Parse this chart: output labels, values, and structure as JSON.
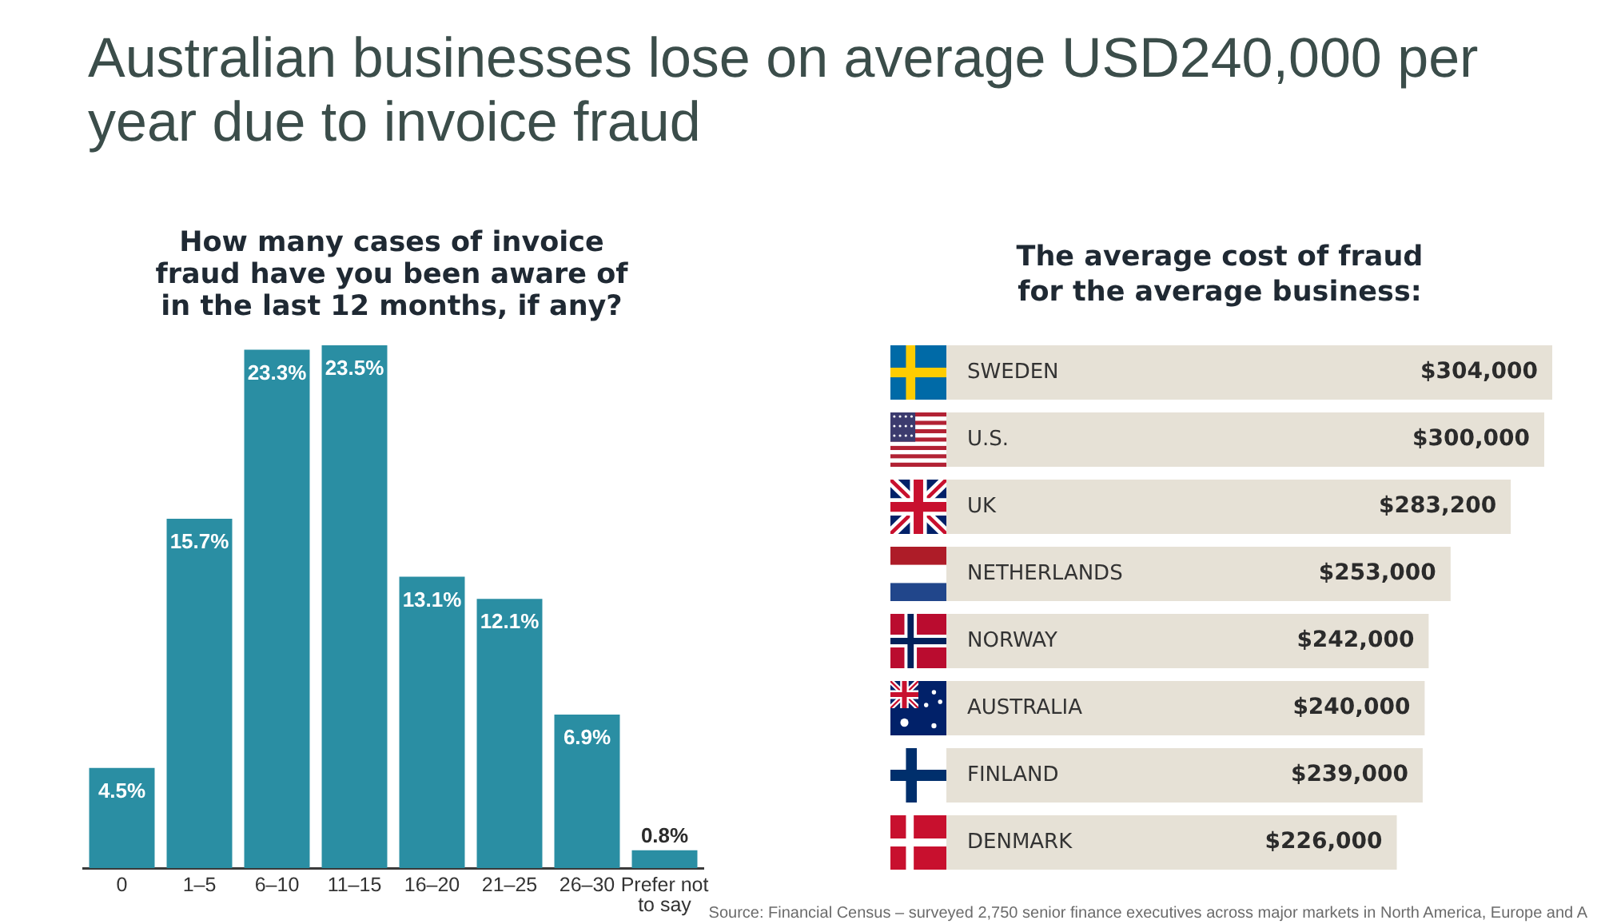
{
  "chart_data": [
    {
      "type": "other",
      "title": "Australian businesses lose on average USD240,000 per year due to invoice fraud"
    },
    {
      "type": "bar",
      "title": "How many cases of invoice fraud have you been aware of in the last 12 months, if any?",
      "categories": [
        "0",
        "1–5",
        "6–10",
        "11–15",
        "16–20",
        "21–25",
        "26–30",
        "Prefer not to say"
      ],
      "values": [
        4.5,
        15.7,
        23.3,
        23.5,
        13.1,
        12.1,
        6.9,
        0.8
      ],
      "value_labels": [
        "4.5%",
        "15.7%",
        "23.3%",
        "23.5%",
        "13.1%",
        "12.1%",
        "6.9%",
        "0.8%"
      ],
      "color": "#2a8ea3",
      "tick_labels": "x"
    },
    {
      "type": "bar",
      "orientation": "horizontal",
      "title": "The average cost of fraud for the average business:",
      "categories": [
        "SWEDEN",
        "U.S.",
        "UK",
        "NETHERLANDS",
        "NORWAY",
        "AUSTRALIA",
        "FINLAND",
        "DENMARK"
      ],
      "values": [
        304000,
        300000,
        283200,
        253000,
        242000,
        240000,
        239000,
        226000
      ],
      "value_labels": [
        "$304,000",
        "$300,000",
        "$283,200",
        "$253,000",
        "$242,000",
        "$240,000",
        "$239,000",
        "$226,000"
      ],
      "color": "#e6e1d6",
      "tick_labels": "y",
      "annotations": [
        "Source: Financial Census – surveyed 2,750 senior finance executives across major markets in North America, Europe and A"
      ]
    }
  ]
}
